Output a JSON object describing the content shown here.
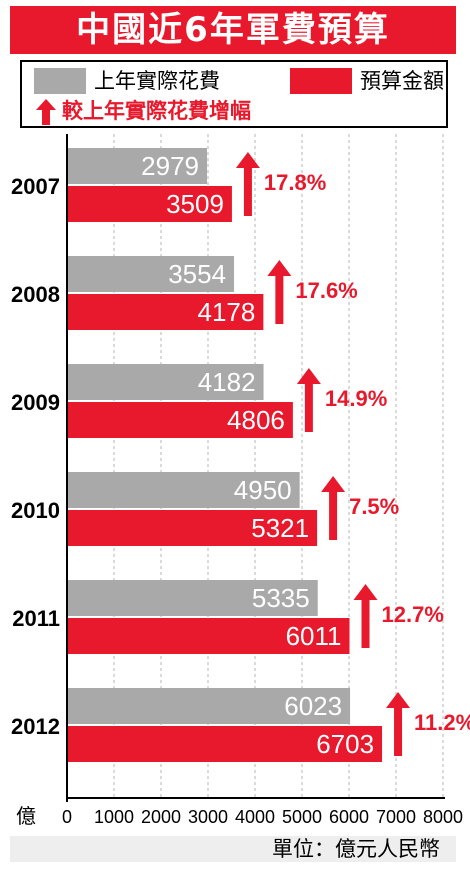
{
  "title": "中國近6年軍費預算",
  "legend": {
    "actual_label": "上年實際花費",
    "budget_label": "預算金額",
    "increase_label": "較上年實際花費增幅"
  },
  "footer": {
    "unit_label": "單位：億元人民幣"
  },
  "colors": {
    "actual": "#a9a9a9",
    "budget": "#e8192c",
    "accent": "#e8192c"
  },
  "chart_data": {
    "type": "bar",
    "orientation": "horizontal",
    "categories": [
      "2007",
      "2008",
      "2009",
      "2010",
      "2011",
      "2012"
    ],
    "series": [
      {
        "name": "上年實際花費",
        "values": [
          2979,
          3554,
          4182,
          4950,
          5335,
          6023
        ]
      },
      {
        "name": "預算金額",
        "values": [
          3509,
          4178,
          4806,
          5321,
          6011,
          6703
        ]
      }
    ],
    "increase_labels": [
      "17.8%",
      "17.6%",
      "14.9%",
      "7.5%",
      "12.7%",
      "11.2%"
    ],
    "xlim": [
      0,
      8000
    ],
    "xticks": [
      0,
      1000,
      2000,
      3000,
      4000,
      5000,
      6000,
      7000,
      8000
    ],
    "xaxis_unit_label": "億",
    "grid": "vertical-dashed"
  }
}
